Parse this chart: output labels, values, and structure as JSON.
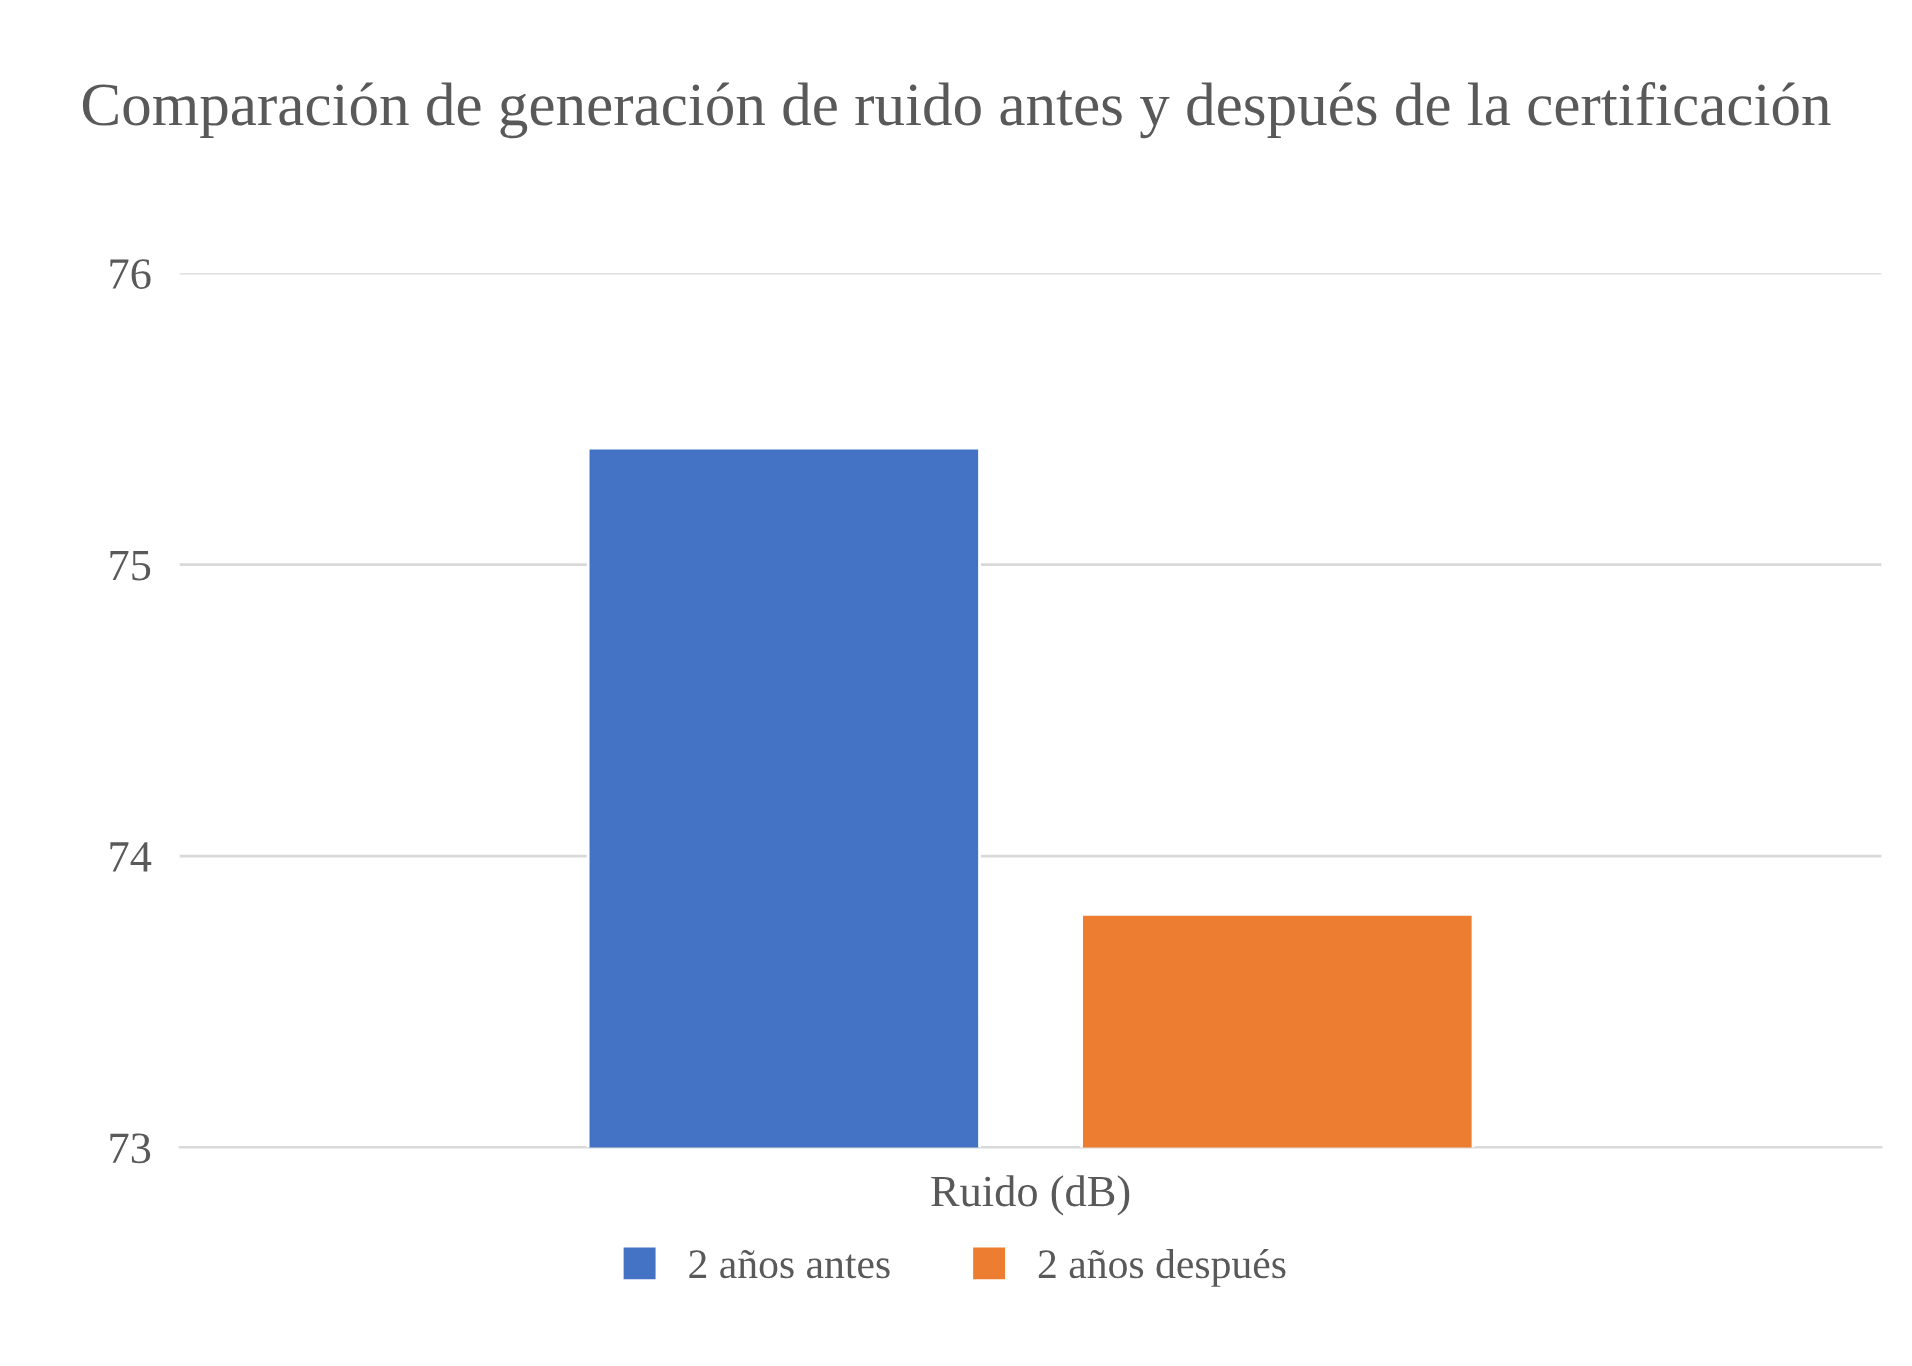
{
  "chart_data": {
    "type": "bar",
    "title": "Comparación de generación de ruido antes y después de la certificación",
    "categories": [
      "Ruido (dB)"
    ],
    "series": [
      {
        "name": "2 años antes",
        "color": "#4472c4",
        "values": [
          75.4
        ]
      },
      {
        "name": "2 años después",
        "color": "#ed7d31",
        "values": [
          73.8
        ]
      }
    ],
    "ylim": [
      73,
      76
    ],
    "yticks": [
      73,
      74,
      75,
      76
    ],
    "grid": "y",
    "legend": "bottom"
  }
}
